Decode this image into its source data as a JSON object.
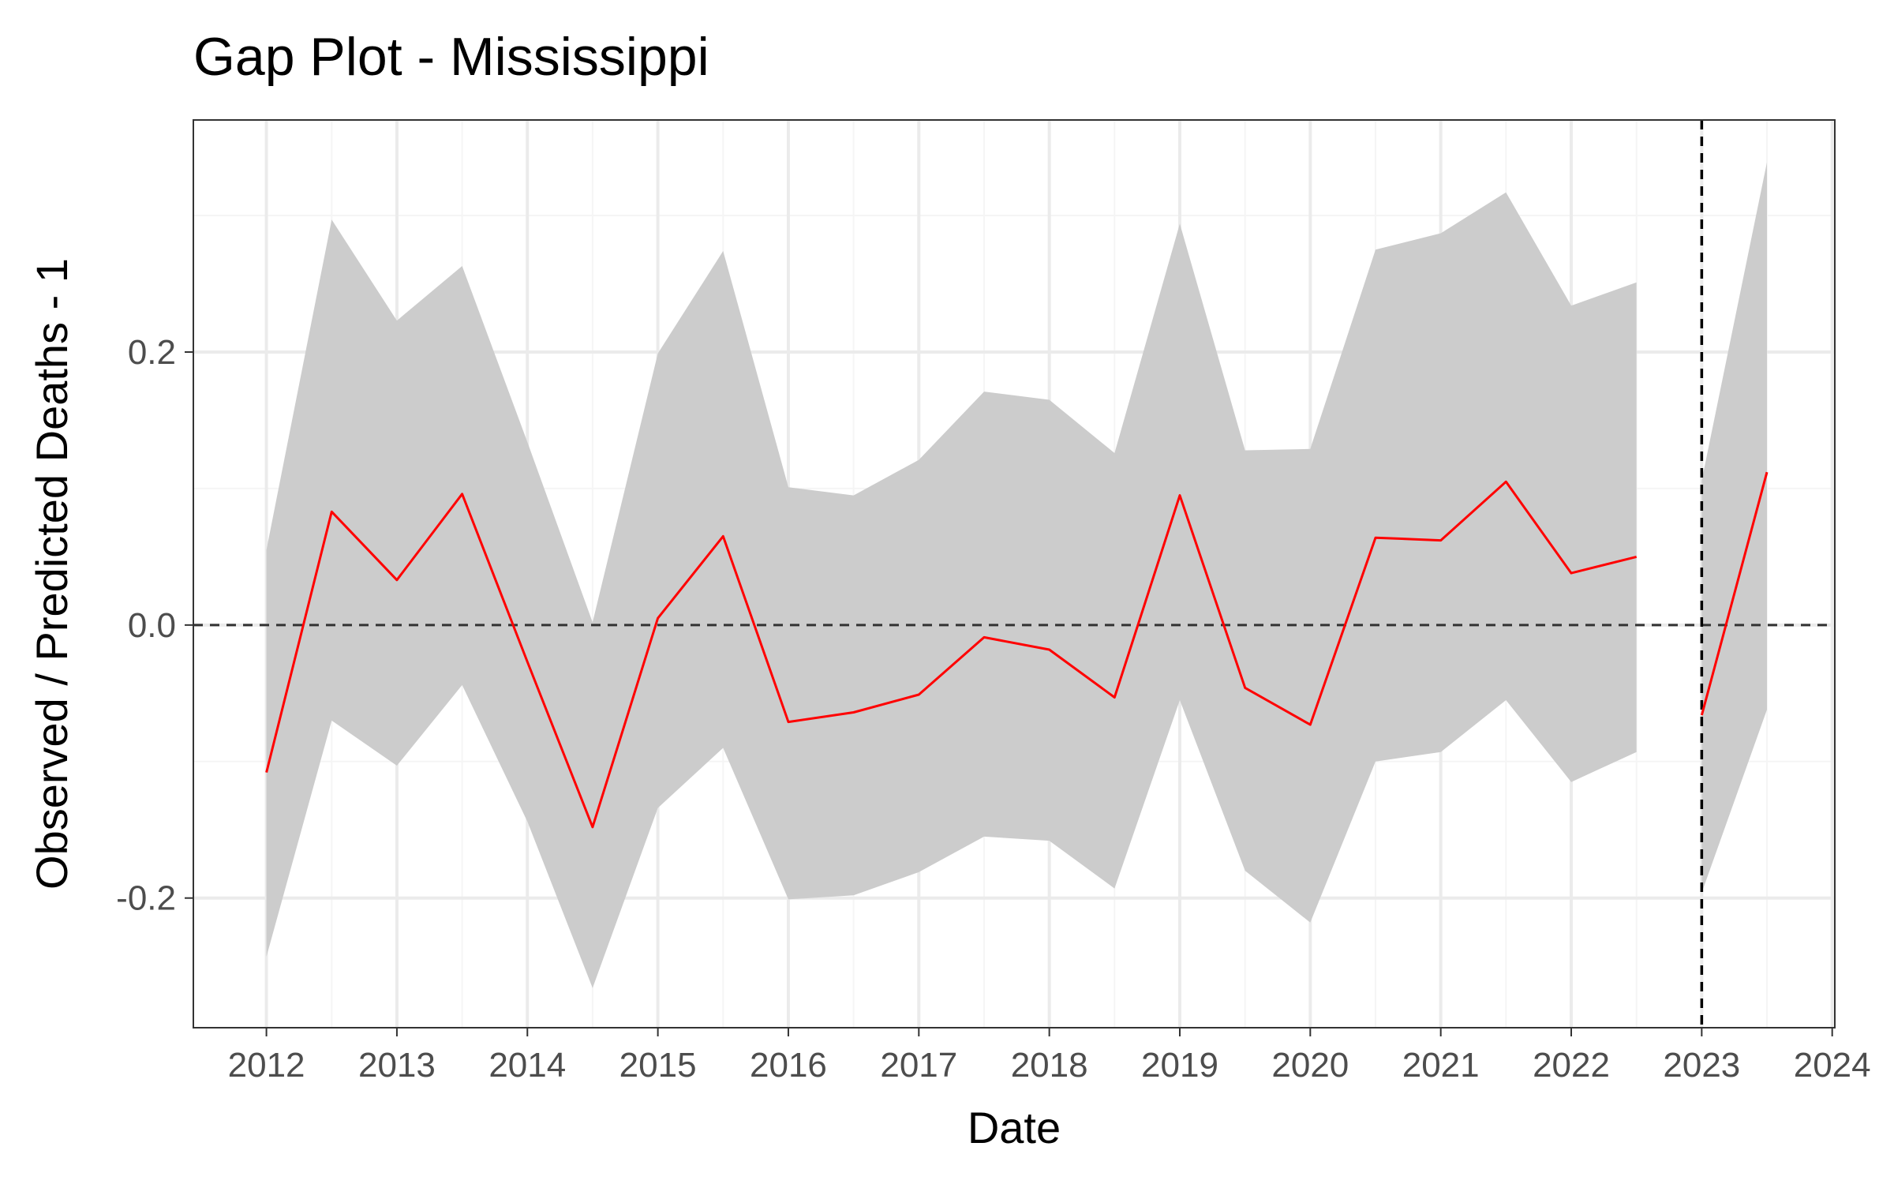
{
  "chart_data": {
    "type": "line",
    "title": "Gap Plot - Mississippi",
    "xlabel": "Date",
    "ylabel": "Observed / Predicted Deaths - 1",
    "x_ticks": [
      "2012",
      "2013",
      "2014",
      "2015",
      "2016",
      "2017",
      "2018",
      "2019",
      "2020",
      "2021",
      "2022",
      "2023",
      "2024"
    ],
    "y_ticks": [
      "-0.2",
      "0.0",
      "0.2"
    ],
    "xlim": [
      2011.44,
      2024.02
    ],
    "ylim": [
      -0.295,
      0.37
    ],
    "grid": true,
    "reference_lines": [
      {
        "axis": "y",
        "value": 0.0,
        "style": "dashed"
      },
      {
        "axis": "x",
        "value": 2023.0,
        "style": "dashed"
      }
    ],
    "colors": {
      "line": "#ff0000",
      "band": "#cccccc",
      "reference": "#333333",
      "vertical_reference": "#000000",
      "grid_major": "#ebebeb",
      "grid_minor": "#f5f5f5"
    },
    "segments": [
      {
        "points": [
          {
            "x": 2012.0,
            "y": -0.108,
            "lower": -0.243,
            "upper": 0.055
          },
          {
            "x": 2012.5,
            "y": 0.083,
            "lower": -0.07,
            "upper": 0.297
          },
          {
            "x": 2013.0,
            "y": 0.033,
            "lower": -0.103,
            "upper": 0.223
          },
          {
            "x": 2013.5,
            "y": 0.096,
            "lower": -0.044,
            "upper": 0.263
          },
          {
            "x": 2014.0,
            "y": -0.027,
            "lower": -0.144,
            "upper": 0.134
          },
          {
            "x": 2014.5,
            "y": -0.148,
            "lower": -0.266,
            "upper": 0.002
          },
          {
            "x": 2015.0,
            "y": 0.005,
            "lower": -0.134,
            "upper": 0.199
          },
          {
            "x": 2015.5,
            "y": 0.065,
            "lower": -0.09,
            "upper": 0.274
          },
          {
            "x": 2016.0,
            "y": -0.071,
            "lower": -0.201,
            "upper": 0.101
          },
          {
            "x": 2016.5,
            "y": -0.064,
            "lower": -0.198,
            "upper": 0.095
          },
          {
            "x": 2017.0,
            "y": -0.051,
            "lower": -0.181,
            "upper": 0.121
          },
          {
            "x": 2017.5,
            "y": -0.009,
            "lower": -0.155,
            "upper": 0.171
          },
          {
            "x": 2018.0,
            "y": -0.018,
            "lower": -0.158,
            "upper": 0.165
          },
          {
            "x": 2018.5,
            "y": -0.053,
            "lower": -0.193,
            "upper": 0.126
          },
          {
            "x": 2019.0,
            "y": 0.095,
            "lower": -0.055,
            "upper": 0.294
          },
          {
            "x": 2019.5,
            "y": -0.046,
            "lower": -0.18,
            "upper": 0.128
          },
          {
            "x": 2020.0,
            "y": -0.073,
            "lower": -0.218,
            "upper": 0.129
          },
          {
            "x": 2020.5,
            "y": 0.064,
            "lower": -0.1,
            "upper": 0.275
          },
          {
            "x": 2021.0,
            "y": 0.062,
            "lower": -0.093,
            "upper": 0.287
          },
          {
            "x": 2021.5,
            "y": 0.105,
            "lower": -0.055,
            "upper": 0.317
          },
          {
            "x": 2022.0,
            "y": 0.038,
            "lower": -0.115,
            "upper": 0.234
          },
          {
            "x": 2022.5,
            "y": 0.05,
            "lower": -0.093,
            "upper": 0.251
          }
        ]
      },
      {
        "points": [
          {
            "x": 2023.0,
            "y": -0.066,
            "lower": -0.196,
            "upper": 0.106
          },
          {
            "x": 2023.5,
            "y": 0.112,
            "lower": -0.062,
            "upper": 0.339
          }
        ]
      }
    ]
  }
}
